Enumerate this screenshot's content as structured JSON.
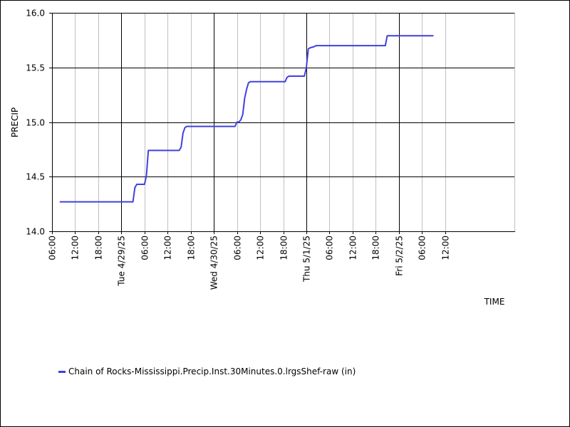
{
  "chart_data": {
    "type": "line",
    "ylabel": "PRECIP",
    "xlabel": "TIME",
    "ylim": [
      14.0,
      16.0
    ],
    "y_ticks": [
      "14.0",
      "14.5",
      "15.0",
      "15.5",
      "16.0"
    ],
    "y_tick_values": [
      14.0,
      14.5,
      15.0,
      15.5,
      16.0
    ],
    "x_range_hours": [
      6,
      126
    ],
    "x_ticks": [
      {
        "hour": 6,
        "label": "06:00",
        "major": false
      },
      {
        "hour": 12,
        "label": "12:00",
        "major": false
      },
      {
        "hour": 18,
        "label": "18:00",
        "major": false
      },
      {
        "hour": 24,
        "label": "Tue 4/29/25",
        "major": true
      },
      {
        "hour": 30,
        "label": "06:00",
        "major": false
      },
      {
        "hour": 36,
        "label": "12:00",
        "major": false
      },
      {
        "hour": 42,
        "label": "18:00",
        "major": false
      },
      {
        "hour": 48,
        "label": "Wed 4/30/25",
        "major": true
      },
      {
        "hour": 54,
        "label": "06:00",
        "major": false
      },
      {
        "hour": 60,
        "label": "12:00",
        "major": false
      },
      {
        "hour": 66,
        "label": "18:00",
        "major": false
      },
      {
        "hour": 72,
        "label": "Thu 5/1/25",
        "major": true
      },
      {
        "hour": 78,
        "label": "06:00",
        "major": false
      },
      {
        "hour": 84,
        "label": "12:00",
        "major": false
      },
      {
        "hour": 90,
        "label": "18:00",
        "major": false
      },
      {
        "hour": 96,
        "label": "Fri 5/2/25",
        "major": true
      },
      {
        "hour": 102,
        "label": "06:00",
        "major": false
      },
      {
        "hour": 108,
        "label": "12:00",
        "major": false
      }
    ],
    "grid": true,
    "legend_position": "bottom-left",
    "series": [
      {
        "name": "Chain of Rocks-Mississippi.Precip.Inst.30Minutes.0.lrgsShef-raw (in)",
        "color": "#4040e0",
        "points": [
          [
            8.0,
            14.27
          ],
          [
            27.0,
            14.27
          ],
          [
            27.5,
            14.4
          ],
          [
            28.0,
            14.43
          ],
          [
            30.0,
            14.43
          ],
          [
            30.5,
            14.51
          ],
          [
            31.0,
            14.74
          ],
          [
            39.0,
            14.74
          ],
          [
            39.5,
            14.77
          ],
          [
            40.0,
            14.9
          ],
          [
            40.5,
            14.95
          ],
          [
            41.0,
            14.96
          ],
          [
            53.5,
            14.96
          ],
          [
            54.0,
            15.0
          ],
          [
            54.5,
            15.0
          ],
          [
            55.0,
            15.02
          ],
          [
            55.5,
            15.07
          ],
          [
            56.0,
            15.22
          ],
          [
            56.5,
            15.3
          ],
          [
            57.0,
            15.36
          ],
          [
            57.5,
            15.37
          ],
          [
            66.5,
            15.37
          ],
          [
            67.0,
            15.41
          ],
          [
            67.5,
            15.42
          ],
          [
            71.5,
            15.42
          ],
          [
            72.0,
            15.5
          ],
          [
            72.5,
            15.67
          ],
          [
            73.0,
            15.68
          ],
          [
            74.0,
            15.69
          ],
          [
            74.5,
            15.7
          ],
          [
            92.5,
            15.7
          ],
          [
            93.0,
            15.79
          ],
          [
            105.0,
            15.79
          ]
        ]
      }
    ]
  }
}
